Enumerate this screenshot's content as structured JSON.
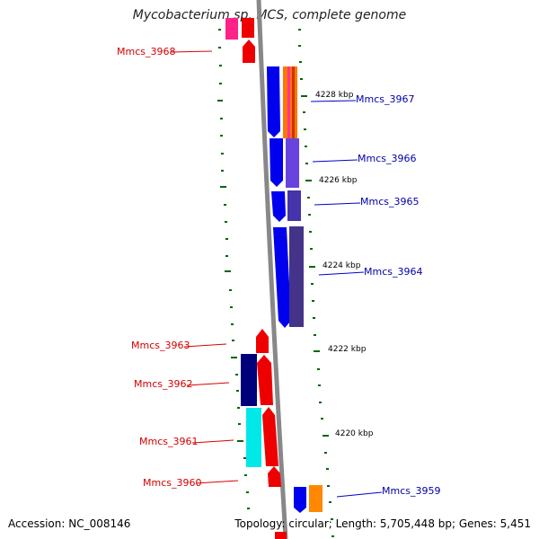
{
  "title": "Mycobacterium sp. MCS, complete genome",
  "accession": "Accession: NC_008146",
  "topology": "Topology: circular; Length: 5,705,448 bp; Genes: 5,451",
  "ruler_labels": [
    "4228 kbp",
    "4226 kbp",
    "4224 kbp",
    "4222 kbp",
    "4220 kbp"
  ],
  "genes": {
    "reverse_strand": [
      "Mmcs_3968",
      "Mmcs_3963",
      "Mmcs_3962",
      "Mmcs_3961",
      "Mmcs_3960"
    ],
    "forward_strand": [
      "Mmcs_3967",
      "Mmcs_3966",
      "Mmcs_3965",
      "Mmcs_3964",
      "Mmcs_3959"
    ]
  },
  "colors": {
    "reverse_gene": "#ee0000",
    "forward_gene": "#0000ee",
    "backbone": "#888888",
    "ticks": "#006600",
    "label_line_red": "#dd0000",
    "label_line_blue": "#0000cc"
  }
}
